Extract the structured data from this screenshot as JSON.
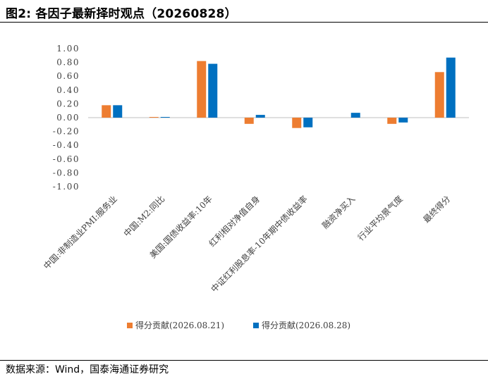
{
  "figure": {
    "title": "图2:  各因子最新择时观点（20260828）",
    "source": "数据来源：Wind，国泰海通证券研究"
  },
  "colors": {
    "series_1": "#ED7D31",
    "series_2": "#0070C0",
    "axis": "#BFBFBF"
  },
  "chart_data": {
    "type": "bar",
    "categories": [
      "中国:非制造业PMI:服务业",
      "中国:M2:同比",
      "美国:国债收益率:10年",
      "红利相对净值自身",
      "中证红利股息率-10年期中债收益率",
      "融资净买入",
      "行业平均景气度",
      "最终得分"
    ],
    "series": [
      {
        "name": "得分贡献(2026.08.21)",
        "values": [
          0.18,
          0.01,
          0.82,
          -0.09,
          -0.15,
          0.0,
          -0.09,
          0.66
        ]
      },
      {
        "name": "得分贡献(2026.08.28)",
        "values": [
          0.18,
          0.01,
          0.78,
          0.04,
          -0.14,
          0.07,
          -0.07,
          0.87
        ]
      }
    ],
    "yticks": [
      "1.00",
      "0.80",
      "0.60",
      "0.40",
      "0.20",
      "0.00",
      "-0.20",
      "-0.40",
      "-0.60",
      "-0.80",
      "-1.00"
    ],
    "ylim": [
      -1.0,
      1.0
    ],
    "grid": false,
    "legend_position": "bottom"
  }
}
